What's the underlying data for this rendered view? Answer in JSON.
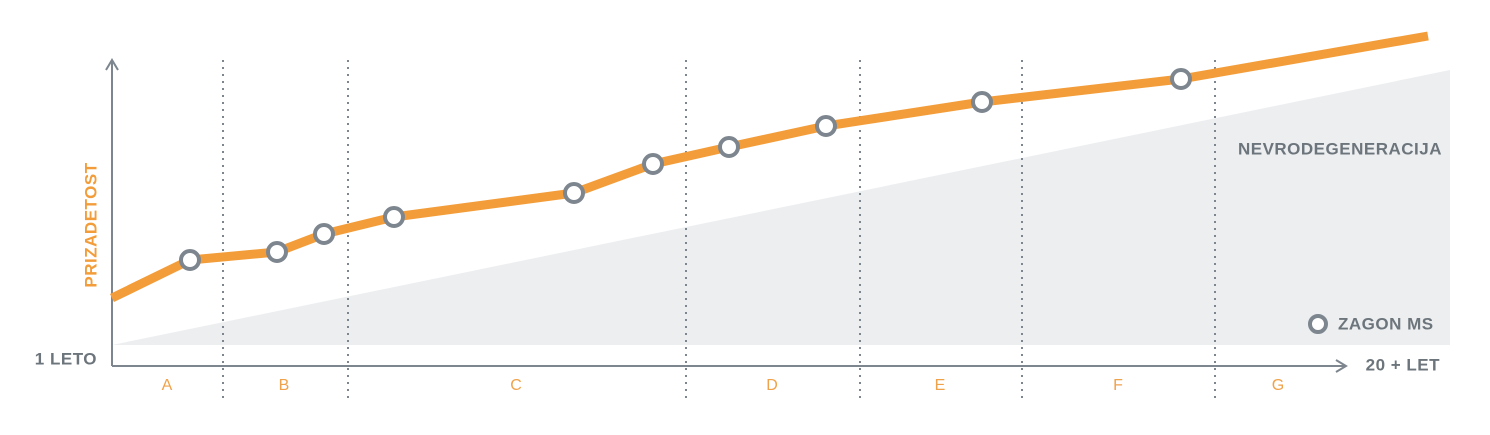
{
  "axes": {
    "y_label": "PRIZADETOST",
    "x_start": "1 LETO",
    "x_end": "20 + LET"
  },
  "area_label": "NEVRODEGENERACIJA",
  "legend": "ZAGON MS",
  "segments": [
    "A",
    "B",
    "C",
    "D",
    "E",
    "F",
    "G"
  ]
}
